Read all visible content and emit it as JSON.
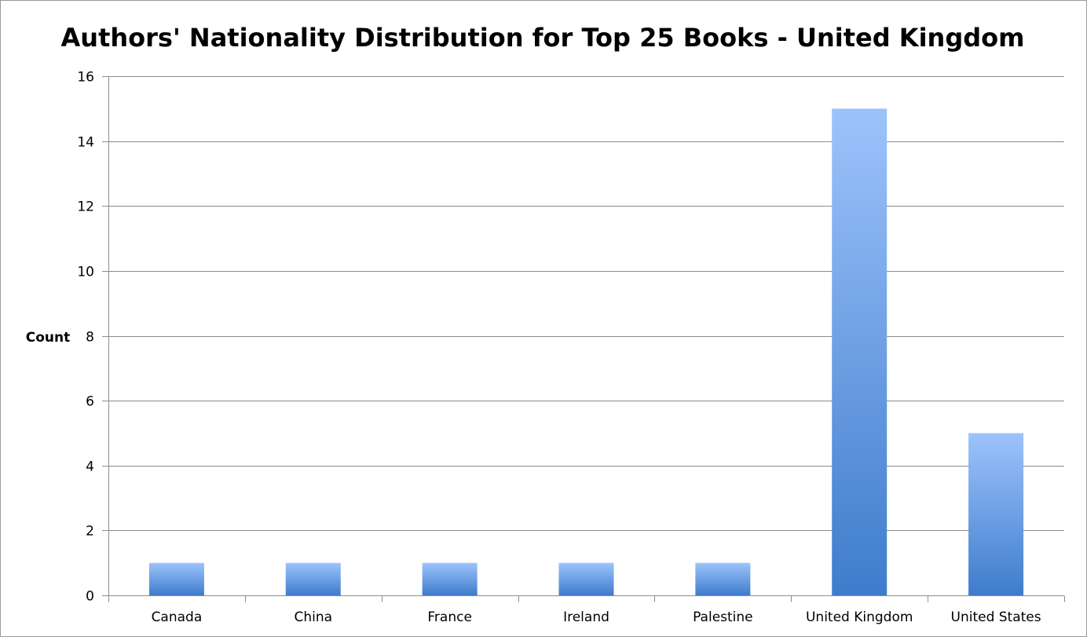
{
  "chart_data": {
    "type": "bar",
    "title": "Authors' Nationality Distribution for Top 25 Books - United Kingdom",
    "xlabel": "",
    "ylabel": "Count",
    "categories": [
      "Canada",
      "China",
      "France",
      "Ireland",
      "Palestine",
      "United Kingdom",
      "United States"
    ],
    "values": [
      1,
      1,
      1,
      1,
      1,
      15,
      5
    ],
    "ylim": [
      0,
      16
    ],
    "yticks": [
      0,
      2,
      4,
      6,
      8,
      10,
      12,
      14,
      16
    ],
    "grid": true,
    "legend": "none",
    "colors": {
      "bar_top": "#9dc3fb",
      "bar_bottom": "#3e7ccc",
      "grid": "#8c8c8c"
    }
  }
}
